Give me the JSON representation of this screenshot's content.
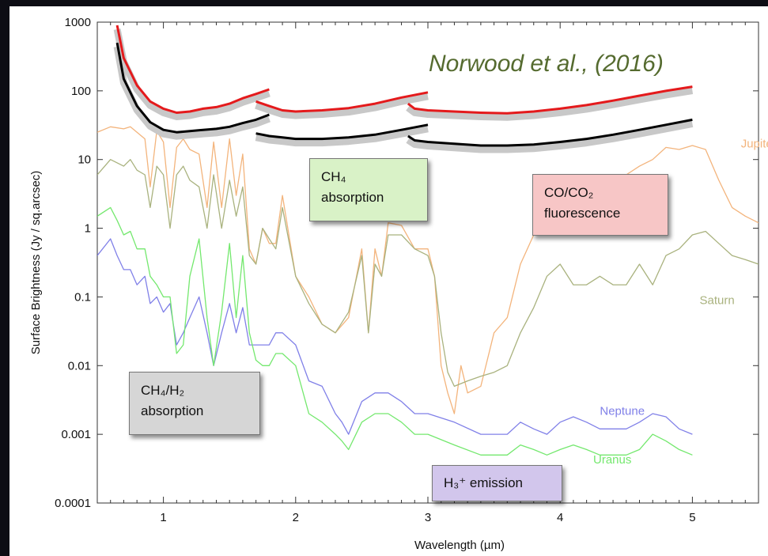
{
  "chart_data": {
    "type": "line",
    "xlabel": "Wavelength (µm)",
    "ylabel": "Surface Brightness (Jy / sq.arcsec)",
    "xlim": [
      0.5,
      5.5
    ],
    "ylim": [
      0.0001,
      1000
    ],
    "yscale": "log",
    "xticks": [
      "1",
      "2",
      "3",
      "4",
      "5"
    ],
    "yticks": [
      "0.0001",
      "0.001",
      "0.01",
      "0.1",
      "1",
      "10",
      "100",
      "1000"
    ],
    "grid": false,
    "credit": "Norwood et al., (2016)",
    "series": [
      {
        "name": "Jupiter",
        "color": "#f3b47c",
        "x": [
          0.5,
          0.6,
          0.7,
          0.75,
          0.8,
          0.86,
          0.9,
          0.95,
          1.0,
          1.05,
          1.1,
          1.15,
          1.2,
          1.27,
          1.33,
          1.38,
          1.44,
          1.5,
          1.55,
          1.6,
          1.65,
          1.7,
          1.75,
          1.8,
          1.85,
          1.9,
          2.0,
          2.1,
          2.2,
          2.3,
          2.4,
          2.5,
          2.55,
          2.6,
          2.65,
          2.7,
          2.8,
          2.9,
          3.0,
          3.05,
          3.1,
          3.15,
          3.2,
          3.25,
          3.3,
          3.4,
          3.5,
          3.6,
          3.7,
          3.8,
          3.9,
          4.0,
          4.1,
          4.2,
          4.3,
          4.4,
          4.5,
          4.6,
          4.7,
          4.8,
          4.9,
          5.0,
          5.1,
          5.2,
          5.3,
          5.4,
          5.5
        ],
        "y": [
          25,
          30,
          28,
          30,
          25,
          20,
          4,
          26,
          18,
          2,
          15,
          20,
          14,
          12,
          2,
          18,
          2,
          20,
          3,
          12,
          0.5,
          0.3,
          1,
          0.6,
          0.6,
          3,
          0.2,
          0.1,
          0.04,
          0.03,
          0.05,
          0.5,
          0.03,
          0.5,
          0.2,
          1.2,
          1.1,
          0.5,
          0.5,
          0.2,
          0.01,
          0.004,
          0.002,
          0.01,
          0.004,
          0.005,
          0.03,
          0.05,
          0.3,
          0.8,
          1.5,
          1,
          1.5,
          2,
          3,
          4,
          6,
          8,
          10,
          15,
          14,
          16,
          14,
          5,
          2,
          1.5,
          1.2
        ]
      },
      {
        "name": "Saturn",
        "color": "#a9b27e",
        "x": [
          0.5,
          0.6,
          0.7,
          0.75,
          0.8,
          0.86,
          0.9,
          0.95,
          1.0,
          1.05,
          1.1,
          1.15,
          1.2,
          1.27,
          1.33,
          1.38,
          1.44,
          1.5,
          1.55,
          1.6,
          1.65,
          1.7,
          1.75,
          1.8,
          1.85,
          1.9,
          2.0,
          2.1,
          2.2,
          2.3,
          2.4,
          2.5,
          2.55,
          2.6,
          2.65,
          2.7,
          2.8,
          2.9,
          3.0,
          3.05,
          3.1,
          3.15,
          3.2,
          3.3,
          3.4,
          3.5,
          3.6,
          3.7,
          3.8,
          3.9,
          4.0,
          4.1,
          4.2,
          4.3,
          4.4,
          4.5,
          4.6,
          4.7,
          4.8,
          4.9,
          5.0,
          5.1,
          5.2,
          5.3,
          5.4,
          5.5
        ],
        "y": [
          6,
          10,
          8,
          10,
          7,
          6,
          2,
          8,
          6,
          1,
          6,
          8,
          5,
          4,
          1,
          6,
          1,
          5,
          1.5,
          4,
          0.4,
          0.3,
          1,
          0.7,
          0.5,
          2,
          0.2,
          0.08,
          0.04,
          0.03,
          0.06,
          0.4,
          0.03,
          0.3,
          0.2,
          0.8,
          0.8,
          0.5,
          0.4,
          0.2,
          0.03,
          0.008,
          0.005,
          0.006,
          0.007,
          0.008,
          0.01,
          0.03,
          0.07,
          0.2,
          0.3,
          0.15,
          0.15,
          0.2,
          0.15,
          0.15,
          0.3,
          0.15,
          0.4,
          0.5,
          0.8,
          0.9,
          0.6,
          0.4,
          0.35,
          0.3
        ]
      },
      {
        "name": "Neptune",
        "color": "#8080e8",
        "x": [
          0.5,
          0.6,
          0.65,
          0.7,
          0.75,
          0.8,
          0.86,
          0.9,
          0.95,
          1.0,
          1.05,
          1.1,
          1.15,
          1.2,
          1.27,
          1.33,
          1.38,
          1.44,
          1.5,
          1.55,
          1.6,
          1.65,
          1.7,
          1.75,
          1.8,
          1.85,
          1.9,
          2.0,
          2.1,
          2.2,
          2.3,
          2.35,
          2.4,
          2.5,
          2.6,
          2.7,
          2.8,
          2.9,
          3.0,
          3.2,
          3.4,
          3.5,
          3.6,
          3.7,
          3.8,
          3.9,
          4.0,
          4.1,
          4.2,
          4.3,
          4.4,
          4.5,
          4.6,
          4.7,
          4.8,
          4.9,
          5.0
        ],
        "y": [
          0.4,
          0.7,
          0.4,
          0.25,
          0.25,
          0.15,
          0.2,
          0.08,
          0.1,
          0.06,
          0.08,
          0.02,
          0.03,
          0.05,
          0.1,
          0.03,
          0.01,
          0.03,
          0.08,
          0.03,
          0.07,
          0.02,
          0.02,
          0.02,
          0.02,
          0.03,
          0.03,
          0.02,
          0.006,
          0.005,
          0.002,
          0.0015,
          0.001,
          0.003,
          0.004,
          0.004,
          0.003,
          0.002,
          0.002,
          0.0015,
          0.001,
          0.001,
          0.001,
          0.0015,
          0.0012,
          0.001,
          0.0015,
          0.0018,
          0.0015,
          0.0012,
          0.0012,
          0.0012,
          0.0015,
          0.002,
          0.0018,
          0.0012,
          0.001
        ]
      },
      {
        "name": "Uranus",
        "color": "#74e86e",
        "x": [
          0.5,
          0.6,
          0.65,
          0.7,
          0.75,
          0.8,
          0.86,
          0.9,
          0.95,
          1.0,
          1.05,
          1.1,
          1.15,
          1.2,
          1.27,
          1.33,
          1.38,
          1.44,
          1.5,
          1.55,
          1.6,
          1.65,
          1.7,
          1.75,
          1.8,
          1.85,
          1.9,
          2.0,
          2.1,
          2.2,
          2.3,
          2.35,
          2.4,
          2.5,
          2.6,
          2.7,
          2.8,
          2.9,
          3.0,
          3.2,
          3.4,
          3.5,
          3.6,
          3.7,
          3.8,
          3.9,
          4.0,
          4.1,
          4.2,
          4.3,
          4.4,
          4.5,
          4.6,
          4.7,
          4.8,
          4.9,
          5.0
        ],
        "y": [
          1.5,
          2,
          1.3,
          0.8,
          0.9,
          0.5,
          0.5,
          0.2,
          0.15,
          0.1,
          0.1,
          0.015,
          0.02,
          0.2,
          0.7,
          0.05,
          0.01,
          0.06,
          0.6,
          0.05,
          0.4,
          0.03,
          0.012,
          0.01,
          0.01,
          0.015,
          0.015,
          0.01,
          0.002,
          0.0015,
          0.001,
          0.0008,
          0.0006,
          0.0015,
          0.002,
          0.002,
          0.0015,
          0.001,
          0.001,
          0.0007,
          0.0005,
          0.0005,
          0.0005,
          0.0007,
          0.0006,
          0.0005,
          0.0006,
          0.0007,
          0.0006,
          0.0005,
          0.0005,
          0.0005,
          0.0006,
          0.001,
          0.0008,
          0.0006,
          0.0005
        ]
      },
      {
        "name": "",
        "color": "#e41a1c",
        "x": [
          0.65,
          0.7,
          0.8,
          0.9,
          1.0,
          1.1,
          1.2,
          1.3,
          1.4,
          1.5,
          1.6,
          1.7,
          1.8,
          null,
          1.7,
          1.8,
          1.9,
          2.0,
          2.2,
          2.4,
          2.6,
          2.8,
          3.0,
          null,
          2.85,
          2.9,
          3.0,
          3.2,
          3.4,
          3.6,
          3.8,
          4.0,
          4.2,
          4.4,
          4.6,
          4.8,
          5.0
        ],
        "y": [
          900,
          300,
          120,
          70,
          55,
          48,
          50,
          55,
          58,
          65,
          78,
          90,
          105,
          null,
          70,
          60,
          52,
          50,
          52,
          56,
          65,
          80,
          95,
          null,
          65,
          55,
          52,
          50,
          48,
          47,
          50,
          55,
          62,
          72,
          85,
          100,
          115
        ]
      },
      {
        "name": "",
        "color": "#000000",
        "x": [
          0.65,
          0.7,
          0.8,
          0.9,
          1.0,
          1.1,
          1.2,
          1.3,
          1.4,
          1.5,
          1.6,
          1.7,
          1.8,
          null,
          1.7,
          1.8,
          1.9,
          2.0,
          2.2,
          2.4,
          2.6,
          2.8,
          3.0,
          null,
          2.85,
          2.9,
          3.0,
          3.2,
          3.4,
          3.6,
          3.8,
          4.0,
          4.2,
          4.4,
          4.6,
          4.8,
          5.0
        ],
        "y": [
          500,
          150,
          60,
          35,
          27,
          25,
          26,
          27,
          28,
          30,
          34,
          38,
          45,
          null,
          24,
          22,
          21,
          20,
          20,
          21,
          23,
          27,
          32,
          null,
          22,
          19,
          18,
          17,
          16,
          16,
          16.5,
          18,
          20,
          23,
          27,
          32,
          38
        ]
      }
    ],
    "annotations": [
      {
        "lines": [
          "CH₄",
          "absorption"
        ],
        "color": "#d9f2c7"
      },
      {
        "lines": [
          "CO/CO₂",
          "fluorescence"
        ],
        "color": "#f7c6c6"
      },
      {
        "lines": [
          "CH₄/H₂",
          "absorption"
        ],
        "color": "#d6d6d6"
      },
      {
        "lines": [
          "H₃⁺ emission"
        ],
        "color": "#d2c6ec"
      }
    ]
  }
}
